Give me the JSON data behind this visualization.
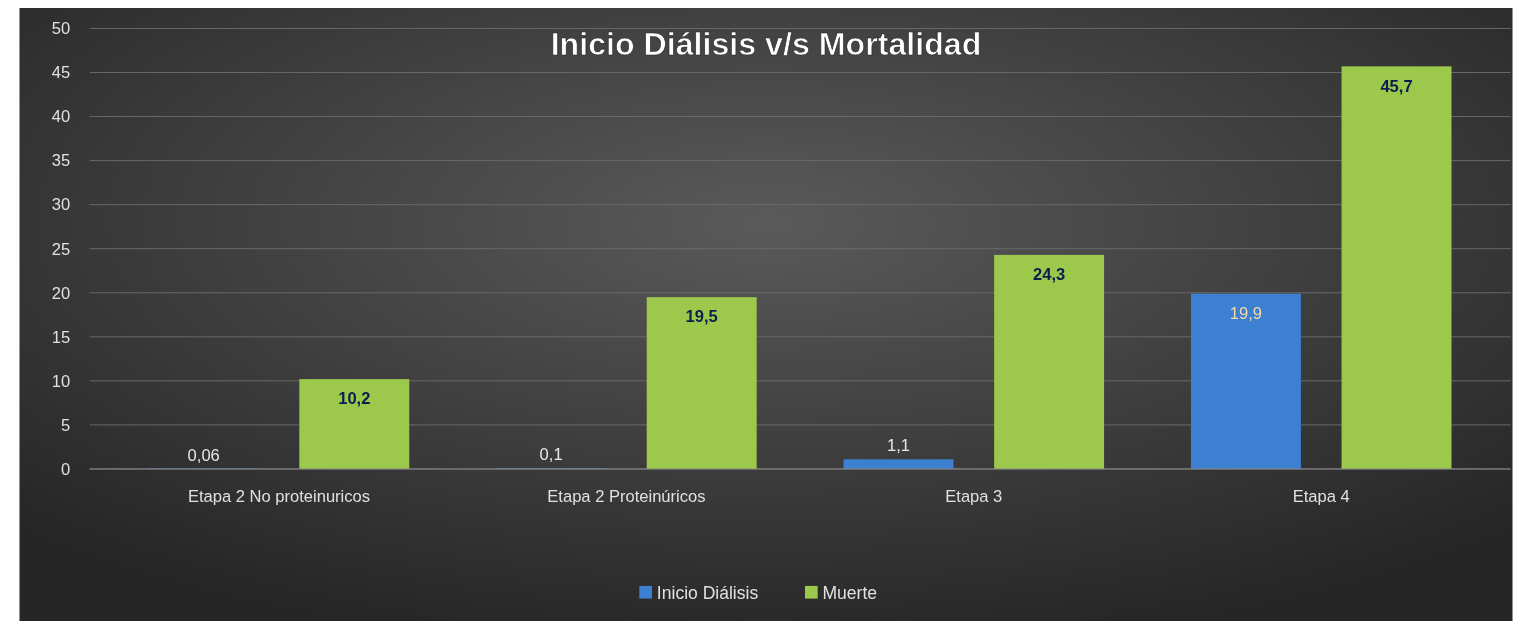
{
  "chart_data": {
    "type": "bar",
    "title": "Inicio Diálisis v/s Mortalidad",
    "categories": [
      "Etapa 2 No proteinuricos",
      "Etapa 2 Proteinúricos",
      "Etapa 3",
      "Etapa 4"
    ],
    "series": [
      {
        "name": "Inicio Diálisis",
        "color": "#3d7fd0",
        "values": [
          0.06,
          0.1,
          1.1,
          19.9
        ],
        "value_labels": [
          "0,06",
          "0,1",
          "1,1",
          "19,9"
        ]
      },
      {
        "name": "Muerte",
        "color": "#9cc94b",
        "values": [
          10.2,
          19.5,
          24.3,
          45.7
        ],
        "value_labels": [
          "10,2",
          "19,5",
          "24,3",
          "45,7"
        ]
      }
    ],
    "ylim": [
      0,
      50
    ],
    "yticks": [
      0,
      5,
      10,
      15,
      20,
      25,
      30,
      35,
      40,
      45,
      50
    ],
    "grid": "y",
    "legend": "bottom"
  }
}
